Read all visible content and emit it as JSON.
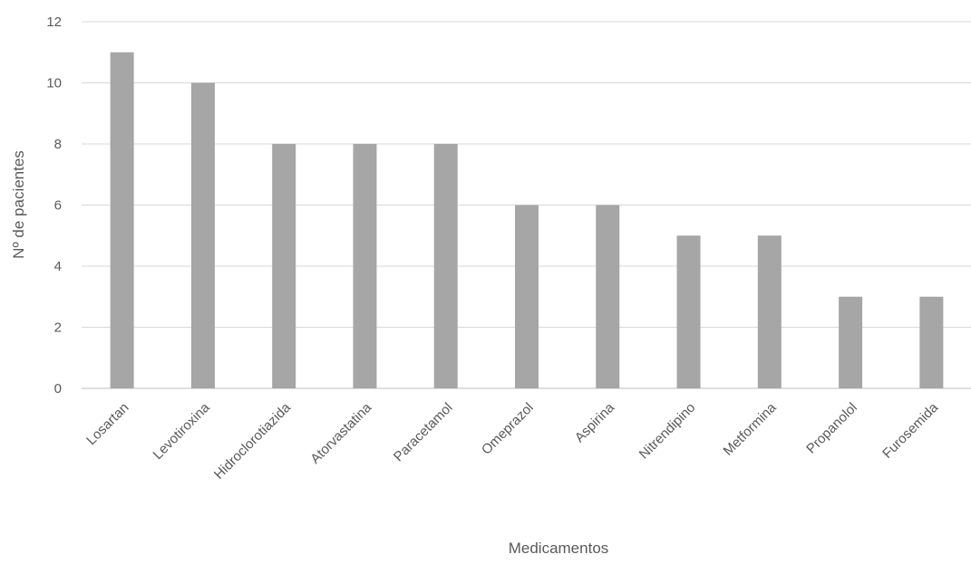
{
  "chart_data": {
    "type": "bar",
    "title": "",
    "xlabel": "Medicamentos",
    "ylabel": "Nº de pacientes",
    "categories": [
      "Losartan",
      "Levotiroxina",
      "Hidroclorotiazida",
      "Atorvastatina",
      "Paracetamol",
      "Omeprazol",
      "Aspirina",
      "Nitrendipino",
      "Metformina",
      "Propanolol",
      "Furosemida"
    ],
    "values": [
      11,
      10,
      8,
      8,
      8,
      6,
      6,
      5,
      5,
      3,
      3
    ],
    "ylim": [
      0,
      12
    ],
    "yticks": [
      0,
      2,
      4,
      6,
      8,
      10,
      12
    ],
    "grid": true,
    "legend": "none",
    "bar_color": "#a6a6a6"
  }
}
